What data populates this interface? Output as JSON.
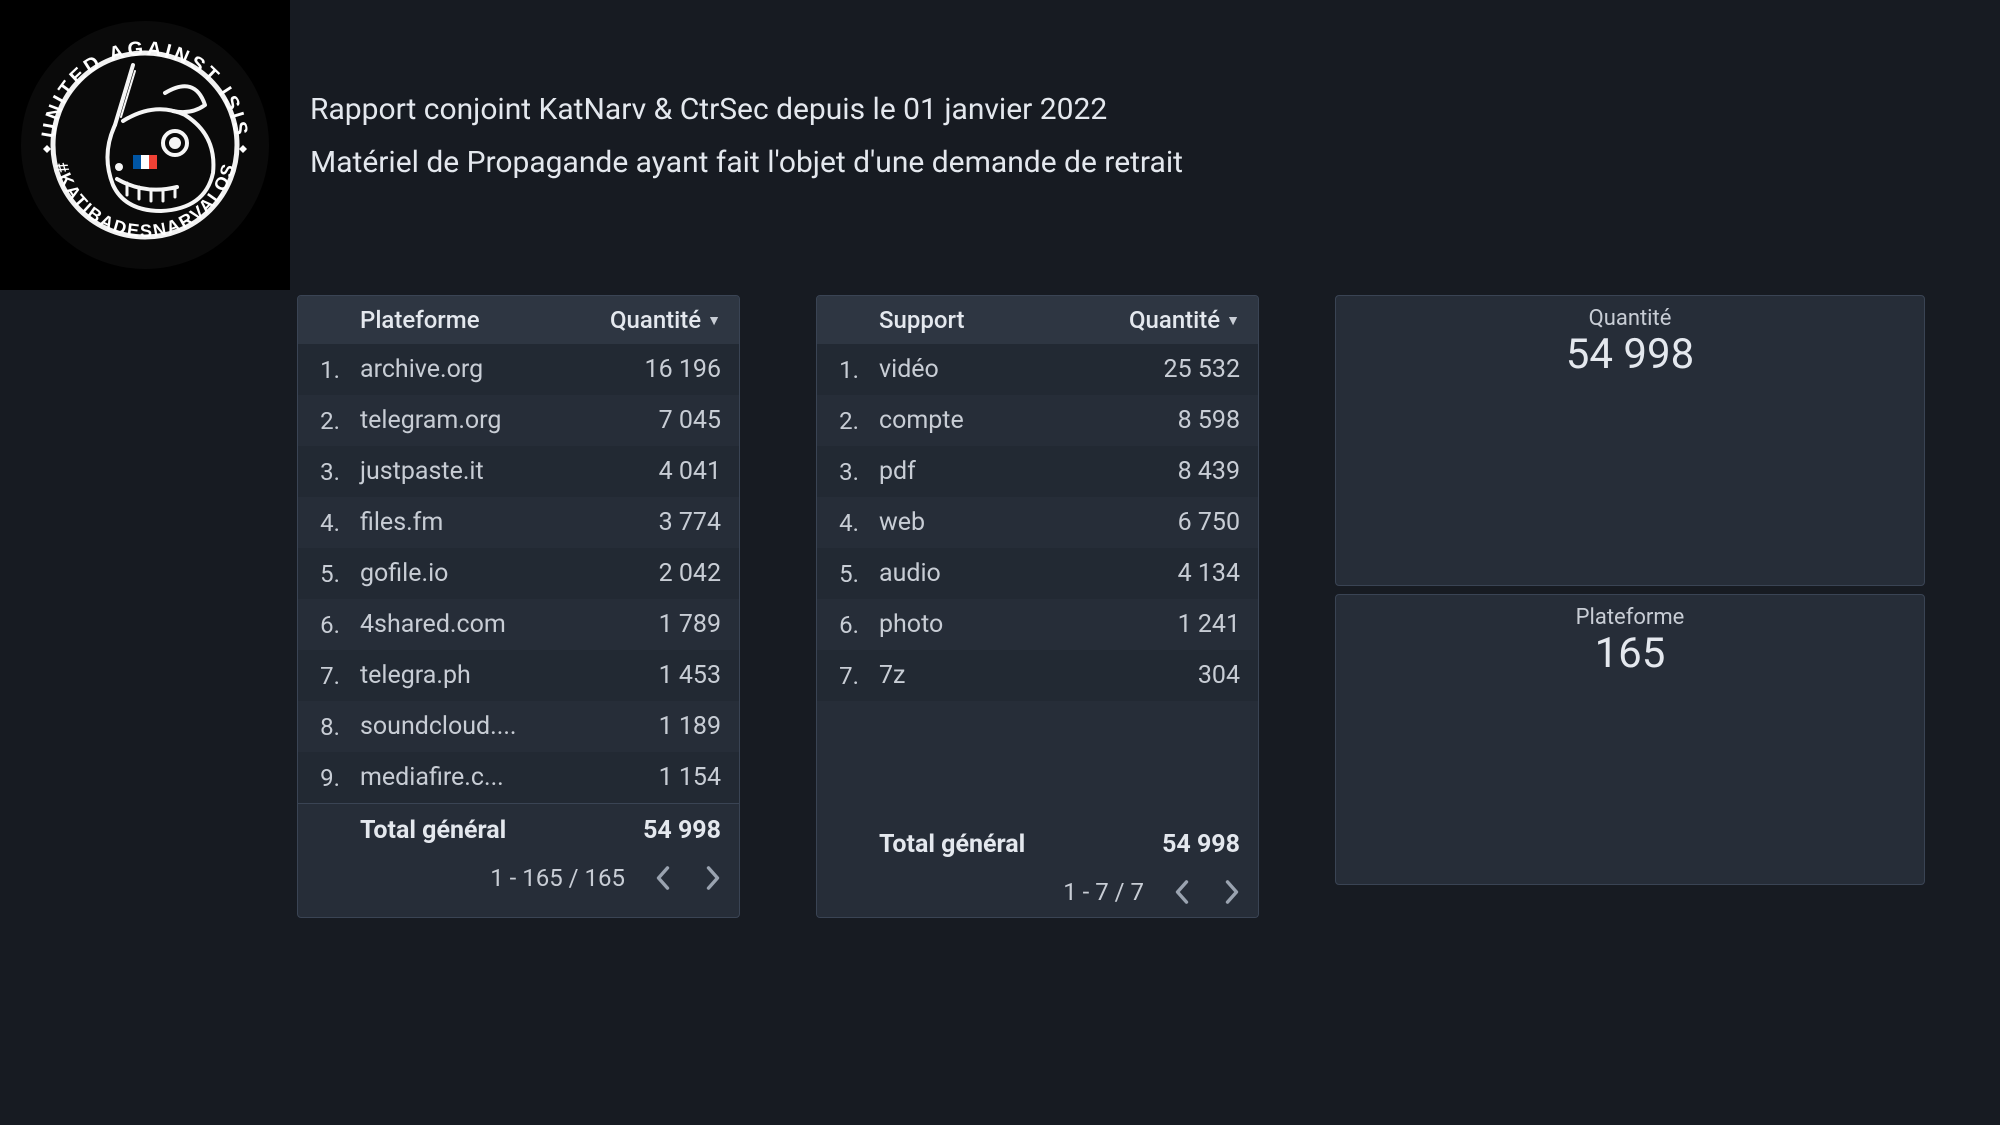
{
  "colors": {
    "background": "#171b22",
    "panel_bg": "#262d38",
    "panel_header_bg": "#2e3642",
    "panel_border": "#3a4454",
    "row_alt": "#222933",
    "text": "#e4e8ee",
    "text_dim": "#c8cdd5",
    "text_muted": "#9aa3b0"
  },
  "logo": {
    "top_text": "UNITED AGAINST ISIS",
    "bottom_text": "#KATIBADESNARVALOS"
  },
  "header": {
    "title": "Rapport conjoint KatNarv & CtrSec depuis le 01 janvier 2022",
    "subtitle": "Matériel de Propagande ayant fait l'objet d'une demande de retrait"
  },
  "tables": {
    "plateforme": {
      "type": "table",
      "columns": {
        "name": "Plateforme",
        "qty": "Quantité"
      },
      "rows": [
        {
          "rank": "1.",
          "name": "archive.org",
          "qty": "16 196"
        },
        {
          "rank": "2.",
          "name": "telegram.org",
          "qty": "7 045"
        },
        {
          "rank": "3.",
          "name": "justpaste.it",
          "qty": "4 041"
        },
        {
          "rank": "4.",
          "name": "files.fm",
          "qty": "3 774"
        },
        {
          "rank": "5.",
          "name": "gofile.io",
          "qty": "2 042"
        },
        {
          "rank": "6.",
          "name": "4shared.com",
          "qty": "1 789"
        },
        {
          "rank": "7.",
          "name": "telegra.ph",
          "qty": "1 453"
        },
        {
          "rank": "8.",
          "name": "soundcloud....",
          "qty": "1 189"
        },
        {
          "rank": "9.",
          "name": "mediafire.c...",
          "qty": "1 154"
        }
      ],
      "total_label": "Total général",
      "total_value": "54 998",
      "pager_range": "1 - 165 / 165"
    },
    "support": {
      "type": "table",
      "columns": {
        "name": "Support",
        "qty": "Quantité"
      },
      "rows": [
        {
          "rank": "1.",
          "name": "vidéo",
          "qty": "25 532"
        },
        {
          "rank": "2.",
          "name": "compte",
          "qty": "8 598"
        },
        {
          "rank": "3.",
          "name": "pdf",
          "qty": "8 439"
        },
        {
          "rank": "4.",
          "name": "web",
          "qty": "6 750"
        },
        {
          "rank": "5.",
          "name": "audio",
          "qty": "4 134"
        },
        {
          "rank": "6.",
          "name": "photo",
          "qty": "1 241"
        },
        {
          "rank": "7.",
          "name": "7z",
          "qty": "304"
        }
      ],
      "total_label": "Total général",
      "total_value": "54 998",
      "pager_range": "1 - 7 / 7"
    }
  },
  "stats": {
    "quantite": {
      "label": "Quantité",
      "value": "54 998"
    },
    "plateforme": {
      "label": "Plateforme",
      "value": "165"
    }
  }
}
